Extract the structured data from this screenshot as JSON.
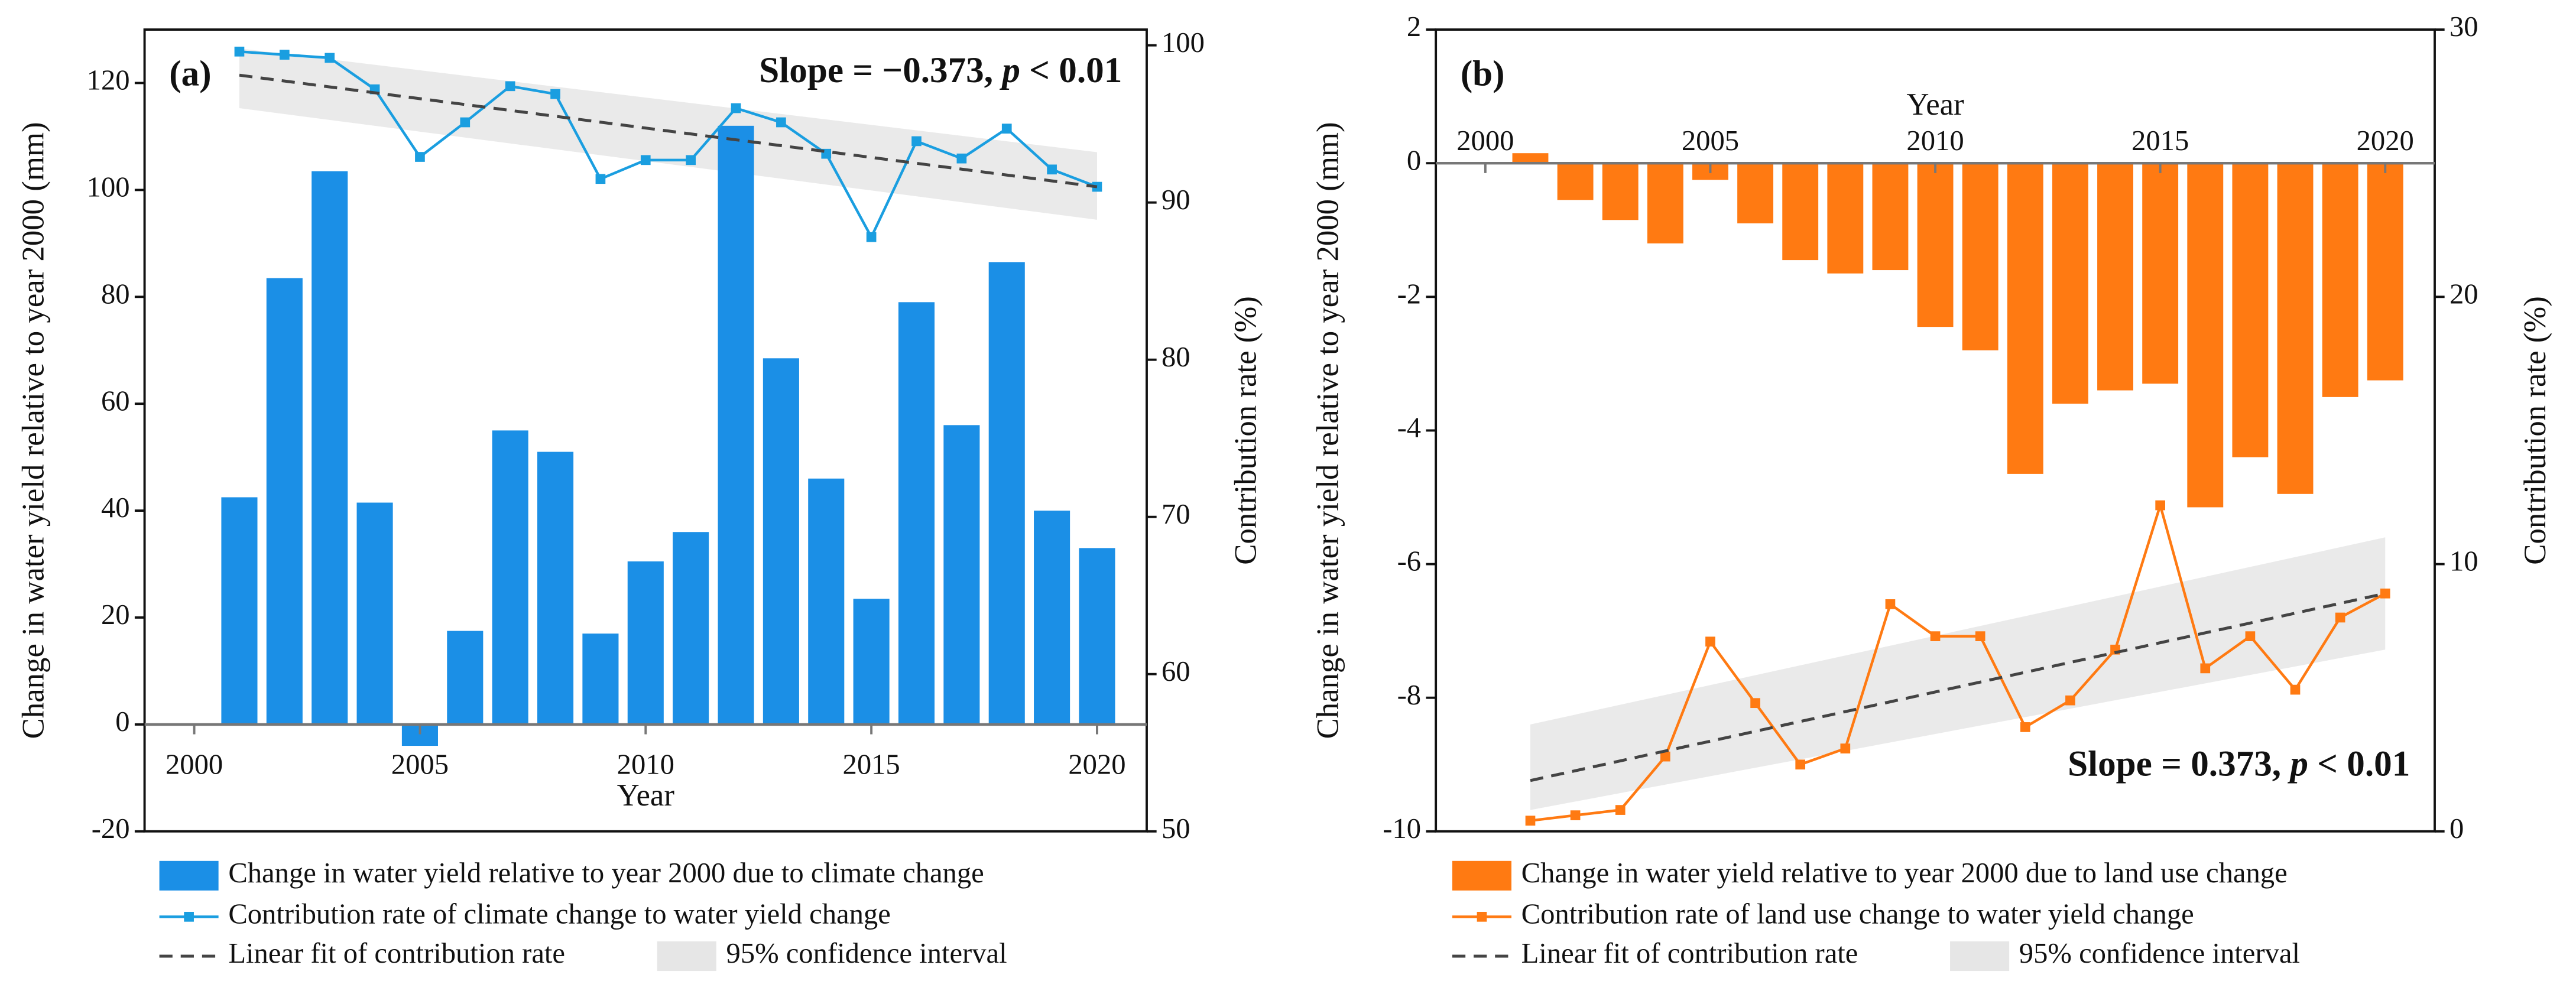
{
  "chart_data": [
    {
      "type": "bar",
      "panel_label": "(a)",
      "annotation": [
        "Slope = −0.373, ",
        "p",
        " < 0.01"
      ],
      "annotation_corner": "top-right",
      "x_label": "Year",
      "x_label_side": "below",
      "y_label": "Change in water yield relative to year 2000 (mm)",
      "y2_label": "Contribution rate (%)",
      "xlim": [
        1998.9,
        2021.1
      ],
      "xticks": [
        2000,
        2005,
        2010,
        2015,
        2020
      ],
      "ylim": [
        -20,
        130
      ],
      "yticks": [
        -20,
        0,
        20,
        40,
        60,
        80,
        100,
        120
      ],
      "y2lim": [
        50,
        101
      ],
      "y2ticks": [
        50,
        60,
        70,
        80,
        90,
        100
      ],
      "x": [
        2001,
        2002,
        2003,
        2004,
        2005,
        2006,
        2007,
        2008,
        2009,
        2010,
        2011,
        2012,
        2013,
        2014,
        2015,
        2016,
        2017,
        2018,
        2019,
        2020
      ],
      "series": [
        {
          "name": "Change in water yield relative to year 2000 due to climate change",
          "color": "#1b8fe6",
          "type": "bar",
          "values": [
            42.5,
            83.5,
            103.5,
            41.5,
            -4,
            17.5,
            55,
            51,
            17,
            30.5,
            36,
            112,
            68.5,
            46,
            23.5,
            79,
            56,
            86.5,
            40,
            33
          ]
        },
        {
          "name": "Contribution rate of climate change to water yield change",
          "color": "#1a9ee0",
          "type": "line",
          "axis": "y2",
          "values": [
            99.6,
            99.4,
            99.2,
            97.2,
            92.9,
            95.1,
            97.4,
            96.9,
            91.5,
            92.7,
            92.7,
            96.0,
            95.1,
            93.1,
            87.8,
            93.9,
            92.8,
            94.7,
            92.1,
            91.0
          ]
        },
        {
          "name": "Linear fit of contribution rate",
          "color": "#444444",
          "type": "fit",
          "axis": "y2",
          "x": [
            2001,
            2020
          ],
          "values": [
            98.1,
            91.0
          ]
        },
        {
          "name": "95% confidence interval",
          "color": "#e6e6e6",
          "type": "band",
          "axis": "y2",
          "x": [
            2001,
            2020
          ],
          "lower": [
            96.0,
            88.9
          ],
          "upper": [
            99.8,
            93.2
          ]
        }
      ]
    },
    {
      "type": "bar",
      "panel_label": "(b)",
      "annotation": [
        "Slope = 0.373, ",
        "p",
        " < 0.01"
      ],
      "annotation_corner": "bottom-right",
      "x_label": "Year",
      "x_label_side": "above",
      "y_label": "Change in water yield relative to year 2000 (mm)",
      "y2_label": "Contribution rate (%)",
      "xlim": [
        1998.9,
        2021.1
      ],
      "xticks": [
        2000,
        2005,
        2010,
        2015,
        2020
      ],
      "ylim": [
        -10,
        2
      ],
      "yticks": [
        -10,
        -8,
        -6,
        -4,
        -2,
        0,
        2
      ],
      "y2lim": [
        0,
        30
      ],
      "y2ticks": [
        0,
        10,
        20,
        30
      ],
      "x": [
        2001,
        2002,
        2003,
        2004,
        2005,
        2006,
        2007,
        2008,
        2009,
        2010,
        2011,
        2012,
        2013,
        2014,
        2015,
        2016,
        2017,
        2018,
        2019,
        2020
      ],
      "series": [
        {
          "name": "Change in water yield relative to year 2000 due to land use change",
          "color": "#ff7a12",
          "type": "bar",
          "values": [
            0.15,
            -0.55,
            -0.85,
            -1.2,
            -0.25,
            -0.9,
            -1.45,
            -1.65,
            -1.6,
            -2.45,
            -2.8,
            -4.65,
            -3.6,
            -3.4,
            -3.3,
            -5.15,
            -4.4,
            -4.95,
            -3.5,
            -3.25
          ]
        },
        {
          "name": "Contribution rate of land use change to water yield change",
          "color": "#ff7a12",
          "type": "line",
          "axis": "y2",
          "values": [
            0.4,
            0.6,
            0.8,
            2.8,
            7.1,
            4.8,
            2.5,
            3.1,
            8.5,
            7.3,
            7.3,
            3.9,
            4.9,
            6.8,
            12.2,
            6.1,
            7.3,
            5.3,
            8.0,
            8.9
          ]
        },
        {
          "name": "Linear fit of contribution rate",
          "color": "#444444",
          "type": "fit",
          "axis": "y2",
          "x": [
            2001,
            2020
          ],
          "values": [
            1.9,
            8.9
          ]
        },
        {
          "name": "95% confidence interval",
          "color": "#e6e6e6",
          "type": "band",
          "axis": "y2",
          "x": [
            2001,
            2020
          ],
          "lower": [
            0.8,
            6.8
          ],
          "upper": [
            4.0,
            11.0
          ]
        }
      ]
    }
  ]
}
